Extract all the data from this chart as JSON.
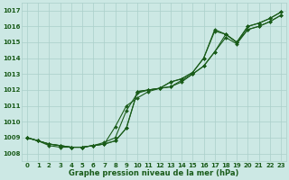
{
  "xlabel": "Graphe pression niveau de la mer (hPa)",
  "bg_color": "#cce8e4",
  "grid_color": "#aacfca",
  "line_color": "#1a5c1a",
  "x_ticks": [
    0,
    1,
    2,
    3,
    4,
    5,
    6,
    7,
    8,
    9,
    10,
    11,
    12,
    13,
    14,
    15,
    16,
    17,
    18,
    19,
    20,
    21,
    22,
    23
  ],
  "ylim": [
    1007.5,
    1017.5
  ],
  "y_ticks": [
    1008,
    1009,
    1010,
    1011,
    1012,
    1013,
    1014,
    1015,
    1016,
    1017
  ],
  "series": [
    [
      1009.0,
      1008.8,
      1008.6,
      1008.5,
      1008.4,
      1008.4,
      1008.5,
      1008.6,
      1008.8,
      1009.6,
      1011.9,
      1012.0,
      1012.1,
      1012.5,
      1012.7,
      1013.1,
      1014.0,
      1015.8,
      1015.5,
      1015.0,
      1016.0,
      1016.2,
      1016.5,
      1016.9
    ],
    [
      1009.0,
      1008.8,
      1008.6,
      1008.5,
      1008.4,
      1008.4,
      1008.5,
      1008.6,
      1008.8,
      1009.6,
      1011.9,
      1012.0,
      1012.1,
      1012.5,
      1012.7,
      1013.1,
      1014.0,
      1015.7,
      1015.5,
      1015.0,
      1016.0,
      1016.2,
      1016.5,
      1016.9
    ],
    [
      1009.0,
      1008.8,
      1008.6,
      1008.5,
      1008.4,
      1008.4,
      1008.5,
      1008.7,
      1009.0,
      1010.7,
      1011.8,
      1012.0,
      1012.1,
      1012.2,
      1012.6,
      1013.0,
      1013.5,
      1014.4,
      1015.5,
      1015.0,
      1015.8,
      1016.0,
      1016.3,
      1016.7
    ],
    [
      1009.0,
      1008.8,
      1008.5,
      1008.4,
      1008.4,
      1008.4,
      1008.5,
      1008.6,
      1009.7,
      1011.0,
      1011.5,
      1011.9,
      1012.1,
      1012.2,
      1012.5,
      1013.0,
      1013.5,
      1014.4,
      1015.3,
      1014.9,
      1015.8,
      1016.0,
      1016.3,
      1016.7
    ]
  ],
  "marker_series_indices": [
    0,
    1,
    2,
    3
  ],
  "linewidth": 0.8,
  "markersize": 2.0,
  "tick_fontsize": 5,
  "xlabel_fontsize": 6
}
